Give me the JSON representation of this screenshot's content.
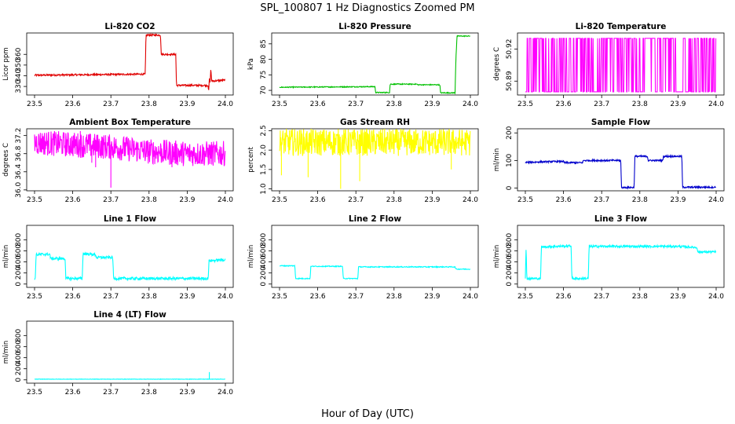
{
  "figure": {
    "title": "SPL_100807  1 Hz Diagnostics Zoomed PM",
    "xlabel": "Hour of Day (UTC)"
  },
  "chart_data": [
    {
      "id": "co2",
      "type": "line",
      "title": "Li-820 CO2",
      "ylabel": "Licor ppm",
      "color": "#e00000",
      "xlim": [
        23.5,
        24.0
      ],
      "ylim": [
        322,
        380
      ],
      "xticks": [
        "23.5",
        "23.6",
        "23.7",
        "23.8",
        "23.9",
        "24.0"
      ],
      "yticks": [
        "330",
        "340",
        "350",
        "360"
      ],
      "series": [
        {
          "name": "CO2",
          "noise": 0.8,
          "points": [
            [
              23.5,
              340.5
            ],
            [
              23.79,
              341.5
            ],
            [
              23.792,
              378
            ],
            [
              23.83,
              378
            ],
            [
              23.832,
              360
            ],
            [
              23.87,
              360
            ],
            [
              23.872,
              331
            ],
            [
              23.955,
              331
            ],
            [
              23.956,
              324
            ],
            [
              23.958,
              337
            ],
            [
              23.96,
              333
            ],
            [
              23.962,
              347
            ],
            [
              23.964,
              335
            ],
            [
              24.0,
              336
            ]
          ]
        }
      ]
    },
    {
      "id": "pressure",
      "type": "line",
      "title": "Li-820 Pressure",
      "ylabel": "kPa",
      "color": "#00c000",
      "xlim": [
        23.5,
        24.0
      ],
      "ylim": [
        68.5,
        88.5
      ],
      "xticks": [
        "23.5",
        "23.6",
        "23.7",
        "23.8",
        "23.9",
        "24.0"
      ],
      "yticks": [
        "70",
        "75",
        "80",
        "85"
      ],
      "series": [
        {
          "name": "Pressure",
          "noise": 0.15,
          "points": [
            [
              23.5,
              71
            ],
            [
              23.75,
              71.2
            ],
            [
              23.752,
              69.3
            ],
            [
              23.788,
              69.3
            ],
            [
              23.79,
              72
            ],
            [
              23.86,
              72
            ],
            [
              23.862,
              71.8
            ],
            [
              23.92,
              71.8
            ],
            [
              23.922,
              69.2
            ],
            [
              23.96,
              69.2
            ],
            [
              23.962,
              80
            ],
            [
              23.965,
              87.5
            ],
            [
              24.0,
              87.5
            ]
          ]
        }
      ]
    },
    {
      "id": "temperature",
      "type": "line",
      "title": "Li-820 Temperature",
      "ylabel": "degrees C",
      "color": "#ff00ff",
      "xlim": [
        23.5,
        24.0
      ],
      "ylim": [
        50.877,
        50.935
      ],
      "xticks": [
        "23.5",
        "23.6",
        "23.7",
        "23.8",
        "23.9",
        "24.0"
      ],
      "yticks": [
        "50.89",
        "50.92"
      ],
      "series": [
        {
          "name": "Temperature",
          "quantized": [
            50.88,
            50.93
          ],
          "noise": 0,
          "points": [
            [
              23.5,
              50.905
            ],
            [
              24.0,
              50.905
            ]
          ]
        }
      ]
    },
    {
      "id": "boxtemp",
      "type": "line",
      "title": "Ambient Box Temperature",
      "ylabel": "degrees C",
      "color": "#ff00ff",
      "xlim": [
        23.5,
        24.0
      ],
      "ylim": [
        35.98,
        37.35
      ],
      "xticks": [
        "23.5",
        "23.6",
        "23.7",
        "23.8",
        "23.9",
        "24.0"
      ],
      "yticks": [
        "36.0",
        "36.4",
        "36.8",
        "37.2"
      ],
      "series": [
        {
          "name": "Box temperature",
          "noise": 0.28,
          "spikes": [
            [
              23.7,
              36.05
            ],
            [
              23.66,
              36.5
            ],
            [
              23.65,
              36.6
            ],
            [
              23.86,
              36.5
            ],
            [
              23.62,
              37.3
            ]
          ],
          "points": [
            [
              23.5,
              37.05
            ],
            [
              23.6,
              37.0
            ],
            [
              23.7,
              36.95
            ],
            [
              23.8,
              36.85
            ],
            [
              23.9,
              36.8
            ],
            [
              24.0,
              36.8
            ]
          ]
        }
      ]
    },
    {
      "id": "rh",
      "type": "line",
      "title": "Gas Stream RH",
      "ylabel": "percent",
      "color": "#ffff00",
      "xlim": [
        23.5,
        24.0
      ],
      "ylim": [
        0.95,
        2.55
      ],
      "xticks": [
        "23.5",
        "23.6",
        "23.7",
        "23.8",
        "23.9",
        "24.0"
      ],
      "yticks": [
        "1.0",
        "1.5",
        "2.0",
        "2.5"
      ],
      "series": [
        {
          "name": "RH",
          "noise": 0.35,
          "spikes": [
            [
              23.66,
              1.0
            ],
            [
              23.575,
              1.3
            ],
            [
              23.505,
              1.35
            ],
            [
              23.71,
              1.2
            ],
            [
              23.95,
              1.5
            ],
            [
              23.66,
              1.1
            ]
          ],
          "points": [
            [
              23.5,
              2.2
            ],
            [
              24.0,
              2.2
            ]
          ]
        }
      ]
    },
    {
      "id": "sampleflow",
      "type": "line",
      "title": "Sample Flow",
      "ylabel": "ml/min",
      "color": "#0000cc",
      "xlim": [
        23.5,
        24.0
      ],
      "ylim": [
        -10,
        215
      ],
      "xticks": [
        "23.5",
        "23.6",
        "23.7",
        "23.8",
        "23.9",
        "24.0"
      ],
      "yticks": [
        "0",
        "100",
        "200"
      ],
      "series": [
        {
          "name": "Sample flow",
          "noise": 3,
          "points": [
            [
              23.5,
              93
            ],
            [
              23.6,
              97
            ],
            [
              23.6,
              92
            ],
            [
              23.65,
              92
            ],
            [
              23.652,
              100
            ],
            [
              23.75,
              100
            ],
            [
              23.752,
              2
            ],
            [
              23.785,
              2
            ],
            [
              23.787,
              115
            ],
            [
              23.82,
              115
            ],
            [
              23.822,
              100
            ],
            [
              23.86,
              100
            ],
            [
              23.862,
              115
            ],
            [
              23.91,
              115
            ],
            [
              23.912,
              3
            ],
            [
              24.0,
              3
            ]
          ]
        }
      ]
    },
    {
      "id": "line1",
      "type": "line",
      "title": "Line 1 Flow",
      "ylabel": "ml/min",
      "color": "#00ffff",
      "xlim": [
        23.5,
        24.0
      ],
      "ylim": [
        -60,
        1060
      ],
      "xticks": [
        "23.5",
        "23.6",
        "23.7",
        "23.8",
        "23.9",
        "24.0"
      ],
      "yticks": [
        "0",
        "200",
        "400",
        "600",
        "800"
      ],
      "series": [
        {
          "name": "Line 1",
          "noise": 25,
          "points": [
            [
              23.5,
              100
            ],
            [
              23.502,
              100
            ],
            [
              23.504,
              530
            ],
            [
              23.54,
              540
            ],
            [
              23.542,
              460
            ],
            [
              23.58,
              460
            ],
            [
              23.582,
              100
            ],
            [
              23.625,
              100
            ],
            [
              23.627,
              550
            ],
            [
              23.66,
              530
            ],
            [
              23.662,
              480
            ],
            [
              23.705,
              480
            ],
            [
              23.707,
              100
            ],
            [
              23.955,
              100
            ],
            [
              23.957,
              420
            ],
            [
              24.0,
              440
            ]
          ]
        }
      ]
    },
    {
      "id": "line2",
      "type": "line",
      "title": "Line 2 Flow",
      "ylabel": "ml/min",
      "color": "#00ffff",
      "xlim": [
        23.5,
        24.0
      ],
      "ylim": [
        -60,
        1060
      ],
      "xticks": [
        "23.5",
        "23.6",
        "23.7",
        "23.8",
        "23.9",
        "24.0"
      ],
      "yticks": [
        "0",
        "200",
        "400",
        "600",
        "800"
      ],
      "series": [
        {
          "name": "Line 2",
          "noise": 8,
          "points": [
            [
              23.5,
              330
            ],
            [
              23.54,
              330
            ],
            [
              23.542,
              100
            ],
            [
              23.58,
              100
            ],
            [
              23.582,
              320
            ],
            [
              23.665,
              320
            ],
            [
              23.667,
              100
            ],
            [
              23.705,
              100
            ],
            [
              23.707,
              310
            ],
            [
              23.96,
              310
            ],
            [
              23.962,
              270
            ],
            [
              24.0,
              270
            ]
          ]
        }
      ]
    },
    {
      "id": "line3",
      "type": "line",
      "title": "Line 3 Flow",
      "ylabel": "ml/min",
      "color": "#00ffff",
      "xlim": [
        23.5,
        24.0
      ],
      "ylim": [
        -60,
        1060
      ],
      "xticks": [
        "23.5",
        "23.6",
        "23.7",
        "23.8",
        "23.9",
        "24.0"
      ],
      "yticks": [
        "0",
        "200",
        "400",
        "600",
        "800"
      ],
      "series": [
        {
          "name": "Line 3",
          "noise": 20,
          "points": [
            [
              23.5,
              100
            ],
            [
              23.502,
              660
            ],
            [
              23.504,
              100
            ],
            [
              23.54,
              100
            ],
            [
              23.542,
              670
            ],
            [
              23.62,
              690
            ],
            [
              23.622,
              100
            ],
            [
              23.665,
              100
            ],
            [
              23.667,
              680
            ],
            [
              23.9,
              680
            ],
            [
              23.95,
              660
            ],
            [
              23.952,
              580
            ],
            [
              24.0,
              580
            ]
          ]
        }
      ]
    },
    {
      "id": "line4",
      "type": "line",
      "title": "Line 4 (LT) Flow",
      "ylabel": "ml/min",
      "color": "#00ffff",
      "xlim": [
        23.5,
        24.0
      ],
      "ylim": [
        -60,
        1060
      ],
      "xticks": [
        "23.5",
        "23.6",
        "23.7",
        "23.8",
        "23.9",
        "24.0"
      ],
      "yticks": [
        "0",
        "200",
        "400",
        "600",
        "800"
      ],
      "series": [
        {
          "name": "Line 4",
          "noise": 3,
          "spikes": [
            [
              23.958,
              140
            ]
          ],
          "points": [
            [
              23.5,
              12
            ],
            [
              24.0,
              12
            ]
          ]
        }
      ]
    }
  ]
}
